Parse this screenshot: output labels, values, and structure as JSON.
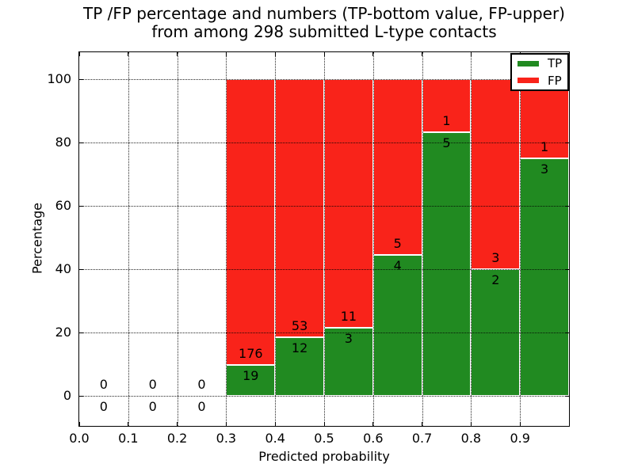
{
  "chart_data": {
    "type": "bar",
    "stacked": true,
    "title_lines": [
      "TP /FP percentage and numbers (TP-bottom value, FP-upper)",
      "from among 298 submitted L-type contacts"
    ],
    "xlabel": "Predicted probability",
    "ylabel": "Percentage",
    "total_submitted": 298,
    "xlim": [
      0.0,
      1.0
    ],
    "ylim": [
      -9.5,
      108.5
    ],
    "x_ticks": [
      0.0,
      0.1,
      0.2,
      0.3,
      0.4,
      0.5,
      0.6,
      0.7,
      0.8,
      0.9
    ],
    "x_tick_labels": [
      "0.0",
      "0.1",
      "0.2",
      "0.3",
      "0.4",
      "0.5",
      "0.6",
      "0.7",
      "0.8",
      "0.9"
    ],
    "y_ticks": [
      0,
      20,
      40,
      60,
      80,
      100
    ],
    "y_tick_labels": [
      "0",
      "20",
      "40",
      "60",
      "80",
      "100"
    ],
    "grid": "dotted",
    "annotation_rule": "FP count above TP/FP boundary, TP count below",
    "legend": {
      "position": "upper-right",
      "entries": [
        {
          "label": "TP",
          "color": "#218a21"
        },
        {
          "label": "FP",
          "color": "#f9231a"
        }
      ]
    },
    "bins": [
      {
        "range": [
          0.0,
          0.1
        ],
        "tp": 0,
        "fp": 0
      },
      {
        "range": [
          0.1,
          0.2
        ],
        "tp": 0,
        "fp": 0
      },
      {
        "range": [
          0.2,
          0.3
        ],
        "tp": 0,
        "fp": 0
      },
      {
        "range": [
          0.3,
          0.4
        ],
        "tp": 19,
        "fp": 176
      },
      {
        "range": [
          0.4,
          0.5
        ],
        "tp": 12,
        "fp": 53
      },
      {
        "range": [
          0.5,
          0.6
        ],
        "tp": 3,
        "fp": 11
      },
      {
        "range": [
          0.6,
          0.7
        ],
        "tp": 4,
        "fp": 5
      },
      {
        "range": [
          0.7,
          0.8
        ],
        "tp": 5,
        "fp": 1
      },
      {
        "range": [
          0.8,
          0.9
        ],
        "tp": 2,
        "fp": 3
      },
      {
        "range": [
          0.9,
          1.0
        ],
        "tp": 3,
        "fp": 1
      }
    ]
  }
}
